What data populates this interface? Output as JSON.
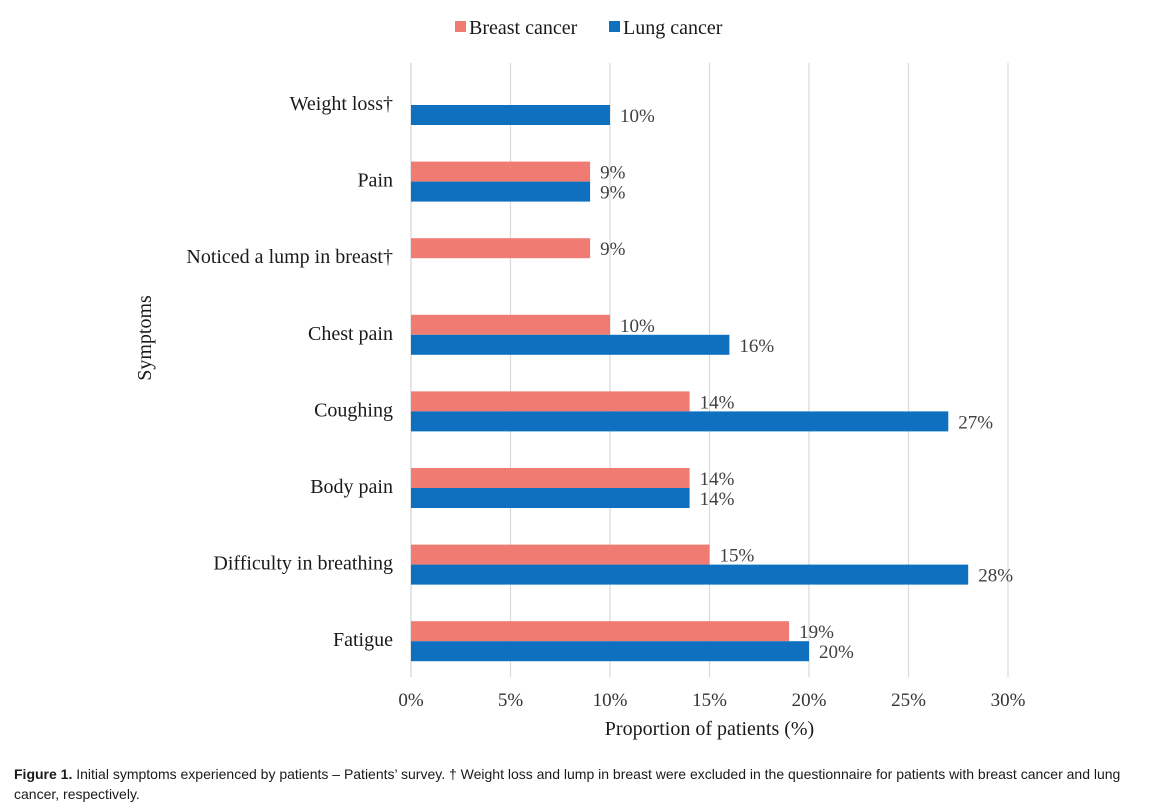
{
  "chart_data": {
    "type": "bar",
    "orientation": "horizontal",
    "categories": [
      "Weight loss†",
      "Pain",
      "Noticed a lump in breast†",
      "Chest pain",
      "Coughing",
      "Body pain",
      "Difficulty in breathing",
      "Fatigue"
    ],
    "series": [
      {
        "name": "Breast cancer",
        "color": "#f07b72",
        "values": [
          null,
          9,
          9,
          10,
          14,
          14,
          15,
          19
        ],
        "labels": [
          "",
          "9%",
          "9%",
          "10%",
          "14%",
          "14%",
          "15%",
          "19%"
        ]
      },
      {
        "name": "Lung cancer",
        "color": "#0f70c0",
        "values": [
          10,
          9,
          null,
          16,
          27,
          14,
          28,
          20
        ],
        "labels": [
          "10%",
          "9%",
          "",
          "16%",
          "27%",
          "14%",
          "28%",
          "20%"
        ]
      }
    ],
    "xlabel": "Proportion of patients (%)",
    "ylabel": "Symptoms",
    "xlim": [
      0,
      30
    ],
    "xticks": [
      "0%",
      "5%",
      "10%",
      "15%",
      "20%",
      "25%",
      "30%"
    ],
    "grid": "vertical",
    "legend_position": "top"
  },
  "caption": {
    "label": "Figure 1.",
    "text": " Initial symptoms experienced by patients – Patients’ survey. † Weight loss and lump in breast were excluded in the questionnaire for patients with breast cancer and lung cancer, respectively."
  }
}
